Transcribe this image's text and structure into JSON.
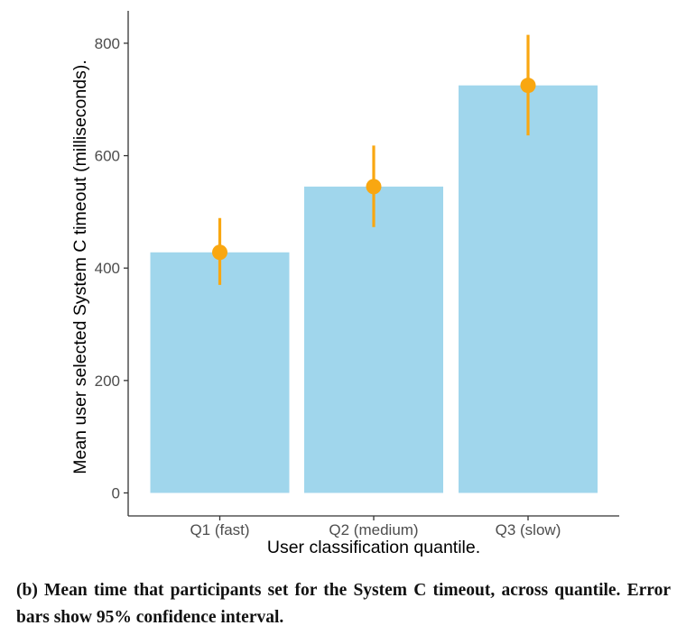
{
  "chart_data": {
    "type": "bar",
    "title": "",
    "xlabel": "User classification quantile.",
    "ylabel": "Mean user selected System C timeout (milliseconds).",
    "categories": [
      "Q1 (fast)",
      "Q2 (medium)",
      "Q3 (slow)"
    ],
    "values": [
      428,
      545,
      725
    ],
    "points": [
      428,
      545,
      725
    ],
    "ci_lower": [
      370,
      473,
      636
    ],
    "ci_upper": [
      489,
      618,
      815
    ],
    "ylim": [
      0,
      860
    ],
    "yticks": [
      0,
      200,
      400,
      600,
      800
    ],
    "grid": false,
    "legend": "none",
    "colors": {
      "bar": "#a0d6ec",
      "point": "#f9a711",
      "errorbar": "#f9a711"
    }
  },
  "caption": "(b) Mean time that participants set for the System C timeout, across quantile. Error bars show 95% confidence interval."
}
